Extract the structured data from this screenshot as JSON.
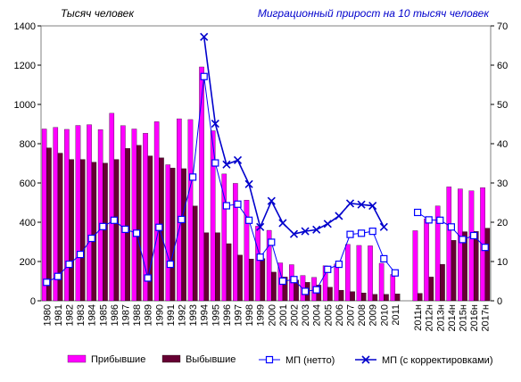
{
  "chart_data": {
    "type": "bar",
    "left_axis_title": "Тысяч человек",
    "right_axis_title": "Миграционный прирост на 10 тысяч человек",
    "categories": [
      "1980",
      "1981",
      "1982",
      "1983",
      "1984",
      "1985",
      "1986",
      "1987",
      "1988",
      "1989",
      "1990",
      "1991",
      "1992",
      "1993",
      "1994",
      "1995",
      "1996",
      "1997",
      "1998",
      "1999",
      "2000",
      "2001",
      "2002",
      "2003",
      "2004",
      "2005",
      "2006",
      "2007",
      "2008",
      "2009",
      "2010",
      "2011",
      "",
      "2011н",
      "2012н",
      "2013н",
      "2014н",
      "2015н",
      "2016н",
      "2017н"
    ],
    "left_axis": {
      "min": 0,
      "max": 1400,
      "step": 200,
      "ticks": [
        "0",
        "200",
        "400",
        "600",
        "800",
        "1000",
        "1200",
        "1400"
      ]
    },
    "right_axis": {
      "min": 0,
      "max": 70,
      "step": 10,
      "ticks": [
        "0",
        "10",
        "20",
        "30",
        "40",
        "50",
        "60",
        "70"
      ]
    },
    "series": [
      {
        "name": "Прибывшие",
        "kind": "bar",
        "axis": "left",
        "color": "#ff00ff",
        "values": [
          875,
          883,
          873,
          893,
          897,
          872,
          955,
          892,
          875,
          853,
          912,
          693,
          927,
          923,
          1191,
          866,
          646,
          598,
          513,
          380,
          359,
          193,
          184,
          129,
          119,
          178,
          187,
          287,
          282,
          280,
          191,
          134,
          null,
          357,
          418,
          483,
          580,
          570,
          560,
          576
        ]
      },
      {
        "name": "Выбывшие",
        "kind": "bar",
        "axis": "left",
        "color": "#660033",
        "values": [
          779,
          752,
          720,
          720,
          706,
          701,
          720,
          776,
          792,
          738,
          728,
          676,
          673,
          483,
          347,
          347,
          291,
          233,
          213,
          215,
          146,
          121,
          106,
          94,
          80,
          69,
          54,
          47,
          40,
          33,
          33,
          35,
          null,
          38,
          121,
          186,
          308,
          352,
          353,
          370
        ]
      },
      {
        "name": "МП  (нетто)",
        "kind": "line",
        "axis": "right",
        "color": "#0000ff",
        "marker": "square",
        "values": [
          4.7,
          6.2,
          9.3,
          11.8,
          15.9,
          18.9,
          20.5,
          18.2,
          17.2,
          5.8,
          18.7,
          9.3,
          20.7,
          31.5,
          57.1,
          35.1,
          24.2,
          24.6,
          20.5,
          11.1,
          14.9,
          5.0,
          5.4,
          2.4,
          2.8,
          8.0,
          9.3,
          16.9,
          17.2,
          17.7,
          10.7,
          7.1,
          null,
          22.5,
          20.6,
          20.5,
          18.8,
          15.6,
          16.6,
          13.6
        ]
      },
      {
        "name": "МП  (с корректировками)",
        "kind": "line",
        "axis": "right",
        "color": "#0000cc",
        "marker": "x",
        "values": [
          null,
          null,
          null,
          null,
          null,
          null,
          null,
          null,
          null,
          null,
          null,
          null,
          null,
          null,
          67.2,
          45.1,
          34.7,
          35.8,
          29.7,
          18.8,
          25.4,
          19.8,
          17.0,
          17.7,
          18.1,
          19.6,
          21.6,
          24.8,
          24.5,
          24.2,
          18.8,
          null,
          null,
          null,
          null,
          null,
          null,
          null,
          null,
          null
        ]
      }
    ],
    "legend_placement": "bottom",
    "grid": false
  }
}
